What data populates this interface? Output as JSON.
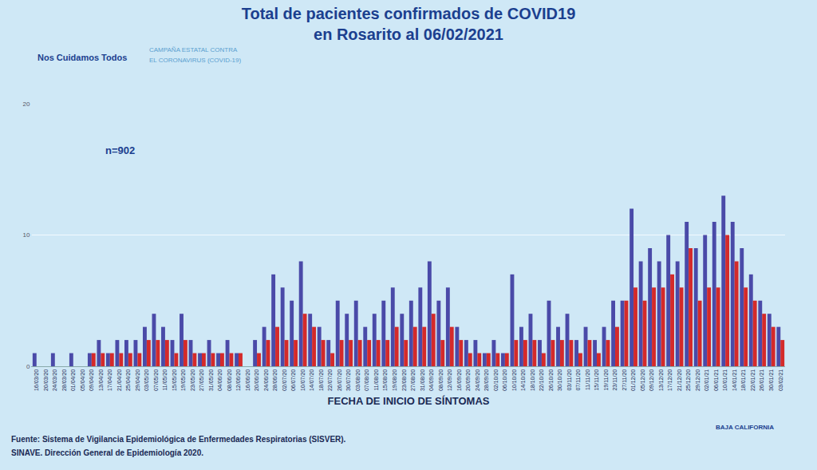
{
  "chart_data": {
    "type": "bar",
    "title": "Total de pacientes confirmados de COVID19",
    "subtitle": "en Rosarito al 06/02/2021",
    "x_label": "FECHA DE INICIO DE SÍNTOMAS",
    "annotations": [
      "n=902",
      "Nos Cuidamos Todos",
      "CAMPAÑA ESTATAL CONTRA",
      "EL CORONAVIRUS (COVID-19)",
      "Fuente: Sistema de Vigilancia Epidemiológica de Enfermedades Respiratorias (SISVER).",
      "SINAVE. Dirección General de Epidemiología 2020.",
      "BAJA CALIFORNIA"
    ],
    "categories": [
      "16/03/20",
      "20/03/20",
      "24/03/20",
      "28/03/20",
      "01/04/20",
      "05/04/20",
      "09/04/20",
      "13/04/20",
      "17/04/20",
      "21/04/20",
      "25/04/20",
      "29/04/20",
      "03/05/20",
      "07/05/20",
      "11/05/20",
      "15/05/20",
      "19/05/20",
      "23/05/20",
      "27/05/20",
      "31/05/20",
      "04/06/20",
      "08/06/20",
      "12/06/20",
      "16/06/20",
      "20/06/20",
      "24/06/20",
      "28/06/20",
      "02/07/20",
      "06/07/20",
      "10/07/20",
      "14/07/20",
      "18/07/20",
      "22/07/20",
      "26/07/20",
      "30/07/20",
      "03/08/20",
      "07/08/20",
      "11/08/20",
      "15/08/20",
      "19/08/20",
      "23/08/20",
      "27/08/20",
      "31/08/20",
      "04/09/20",
      "08/09/20",
      "12/09/20",
      "16/09/20",
      "20/09/20",
      "24/09/20",
      "28/09/20",
      "02/10/20",
      "06/10/20",
      "10/10/20",
      "14/10/20",
      "18/10/20",
      "22/10/20",
      "26/10/20",
      "30/10/20",
      "03/11/20",
      "07/11/20",
      "11/11/20",
      "15/11/20",
      "19/11/20",
      "23/11/20",
      "27/11/20",
      "01/12/20",
      "05/12/20",
      "09/12/20",
      "13/12/20",
      "17/12/20",
      "21/12/20",
      "25/12/20",
      "29/12/20",
      "02/01/21",
      "06/01/21",
      "10/01/21",
      "14/01/21",
      "18/01/21",
      "22/01/21",
      "26/01/21",
      "30/01/21",
      "03/02/21"
    ],
    "series": [
      {
        "color": "#4a4aa8",
        "values": [
          1,
          0,
          1,
          0,
          1,
          0,
          1,
          2,
          1,
          2,
          2,
          2,
          3,
          4,
          3,
          2,
          4,
          2,
          1,
          2,
          1,
          2,
          1,
          0,
          2,
          3,
          7,
          6,
          5,
          8,
          4,
          3,
          2,
          5,
          4,
          5,
          3,
          4,
          5,
          6,
          4,
          5,
          6,
          8,
          5,
          6,
          3,
          2,
          2,
          1,
          2,
          1,
          7,
          3,
          4,
          2,
          5,
          3,
          4,
          2,
          3,
          2,
          3,
          5,
          5,
          12,
          8,
          9,
          8,
          10,
          8,
          11,
          9,
          10,
          11,
          13,
          11,
          9,
          7,
          5,
          4,
          3
        ]
      },
      {
        "color": "#d42a2a",
        "values": [
          0,
          0,
          0,
          0,
          0,
          0,
          1,
          1,
          1,
          1,
          1,
          1,
          2,
          2,
          2,
          1,
          2,
          1,
          1,
          1,
          1,
          1,
          1,
          0,
          1,
          2,
          3,
          2,
          2,
          4,
          3,
          2,
          1,
          2,
          2,
          2,
          2,
          2,
          2,
          3,
          2,
          3,
          3,
          4,
          2,
          3,
          2,
          1,
          1,
          1,
          1,
          1,
          2,
          2,
          2,
          1,
          2,
          2,
          2,
          1,
          2,
          1,
          2,
          3,
          5,
          6,
          5,
          6,
          6,
          7,
          6,
          9,
          5,
          6,
          6,
          10,
          8,
          6,
          5,
          4,
          3,
          2
        ]
      }
    ],
    "ylim": [
      0,
      20
    ],
    "yticks": [
      0,
      10,
      20
    ],
    "grid": true
  }
}
